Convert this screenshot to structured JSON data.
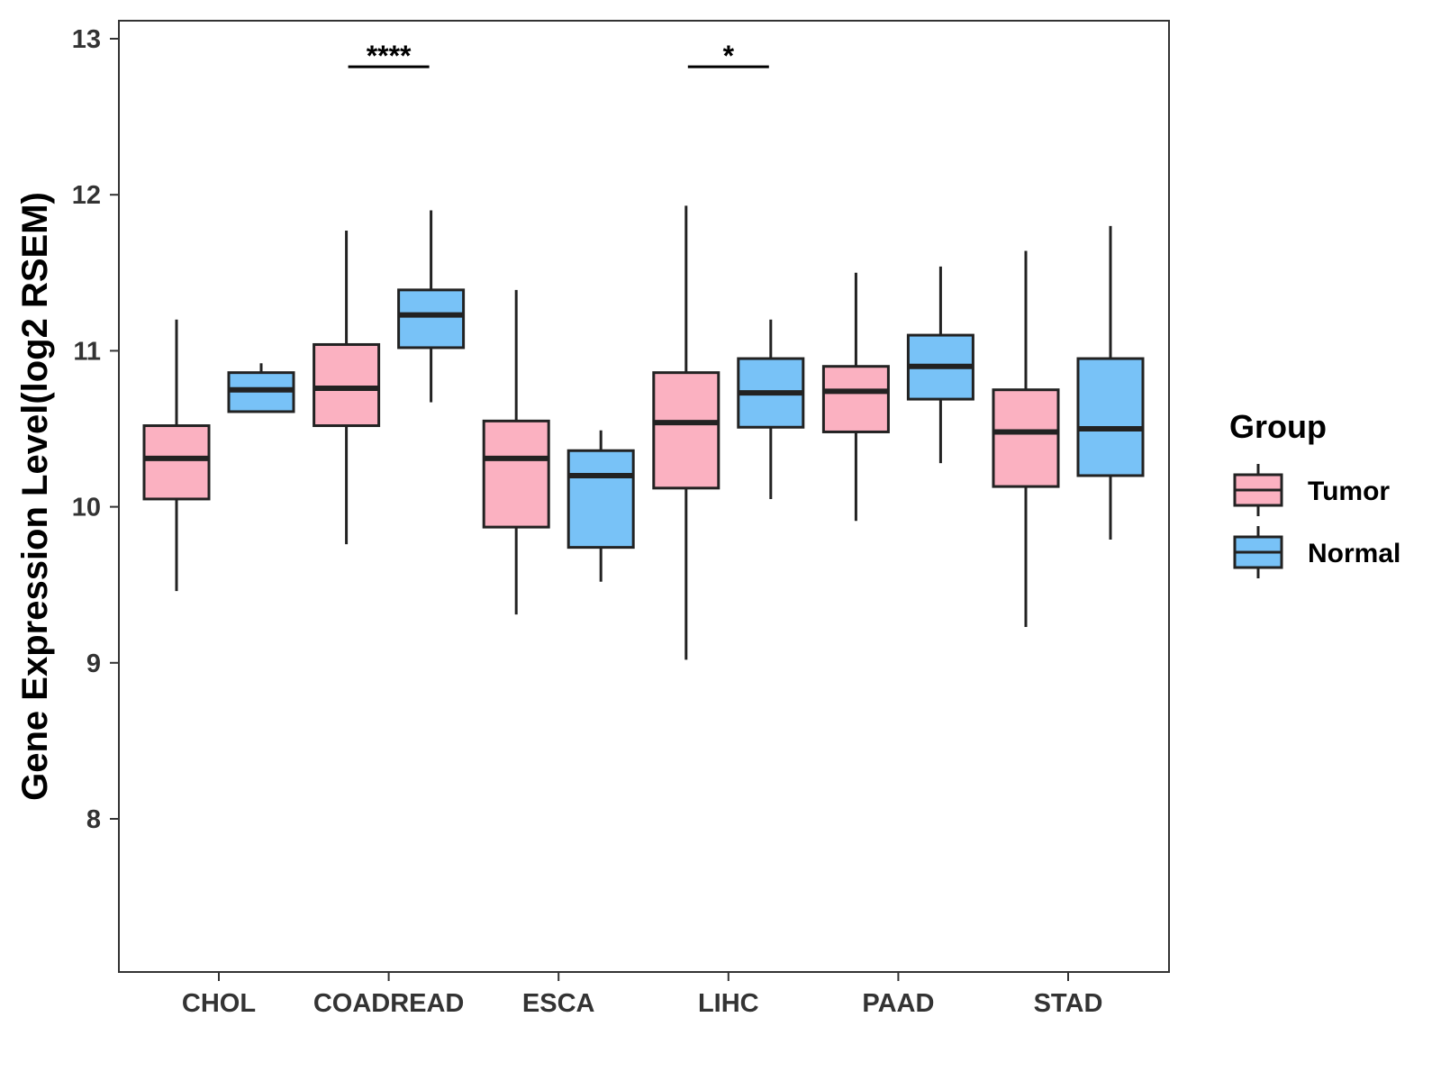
{
  "chart_data": {
    "type": "boxplot",
    "title": "",
    "xlabel": "",
    "ylabel": "Gene Expression Level(log2 RSEM)",
    "ylim": [
      7,
      13.1
    ],
    "yticks": [
      8,
      9,
      10,
      11,
      12,
      13
    ],
    "categories": [
      "CHOL",
      "COADREAD",
      "ESCA",
      "LIHC",
      "PAAD",
      "STAD"
    ],
    "legend": {
      "title": "Group",
      "position": "right"
    },
    "series": [
      {
        "name": "Tumor",
        "color": "#FBB1C1",
        "boxes": [
          {
            "category": "CHOL",
            "min": 9.46,
            "q1": 10.05,
            "median": 10.31,
            "q3": 10.52,
            "max": 11.2
          },
          {
            "category": "COADREAD",
            "min": 9.76,
            "q1": 10.52,
            "median": 10.76,
            "q3": 11.04,
            "max": 11.77
          },
          {
            "category": "ESCA",
            "min": 9.31,
            "q1": 9.87,
            "median": 10.31,
            "q3": 10.55,
            "max": 11.39
          },
          {
            "category": "LIHC",
            "min": 9.02,
            "q1": 10.12,
            "median": 10.54,
            "q3": 10.86,
            "max": 11.93
          },
          {
            "category": "PAAD",
            "min": 9.91,
            "q1": 10.48,
            "median": 10.74,
            "q3": 10.9,
            "max": 11.5
          },
          {
            "category": "STAD",
            "min": 9.23,
            "q1": 10.13,
            "median": 10.48,
            "q3": 10.75,
            "max": 11.64
          }
        ]
      },
      {
        "name": "Normal",
        "color": "#78C2F7",
        "boxes": [
          {
            "category": "CHOL",
            "min": 10.61,
            "q1": 10.61,
            "median": 10.75,
            "q3": 10.86,
            "max": 10.92
          },
          {
            "category": "COADREAD",
            "min": 10.67,
            "q1": 11.02,
            "median": 11.23,
            "q3": 11.39,
            "max": 11.9
          },
          {
            "category": "ESCA",
            "min": 9.52,
            "q1": 9.74,
            "median": 10.2,
            "q3": 10.36,
            "max": 10.49
          },
          {
            "category": "LIHC",
            "min": 10.05,
            "q1": 10.51,
            "median": 10.73,
            "q3": 10.95,
            "max": 11.2
          },
          {
            "category": "PAAD",
            "min": 10.28,
            "q1": 10.69,
            "median": 10.9,
            "q3": 11.1,
            "max": 11.54
          },
          {
            "category": "STAD",
            "min": 9.79,
            "q1": 10.2,
            "median": 10.5,
            "q3": 10.95,
            "max": 11.8
          }
        ]
      }
    ],
    "significance": [
      {
        "category": "COADREAD",
        "label": "****",
        "y": 12.82
      },
      {
        "category": "LIHC",
        "label": "*",
        "y": 12.82
      }
    ]
  }
}
